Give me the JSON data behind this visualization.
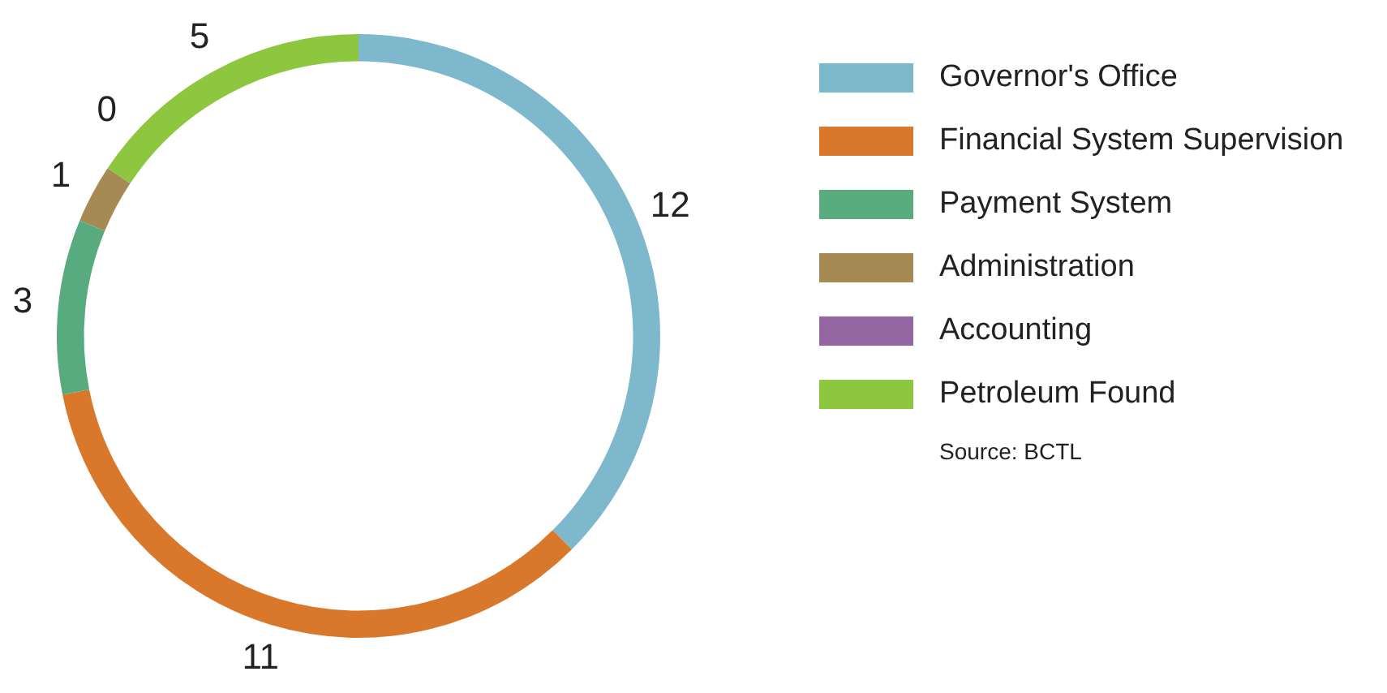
{
  "chart_data": {
    "type": "donut",
    "categories": [
      "Governor's Office",
      "Financial System Supervision",
      "Payment System",
      "Administration",
      "Accounting",
      "Petroleum Found"
    ],
    "values": [
      12,
      11,
      3,
      1,
      0,
      5
    ],
    "value_labels": [
      "12",
      "11",
      "3",
      "1",
      "0",
      "5"
    ],
    "colors": [
      "#7db8cc",
      "#d9772b",
      "#58ab7f",
      "#a68a53",
      "#9467a0",
      "#8dc63f"
    ],
    "legend": "right",
    "annotations": [
      "Source: BCTL"
    ]
  }
}
